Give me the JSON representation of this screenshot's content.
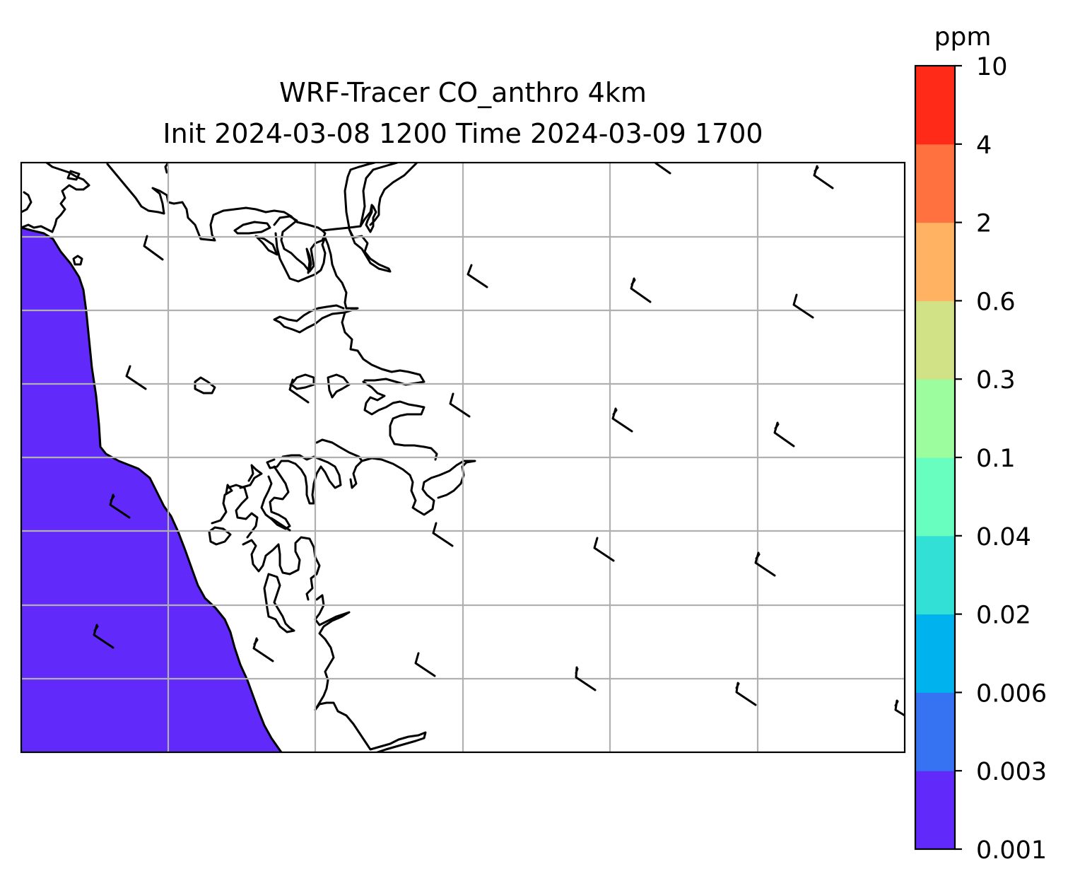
{
  "title": {
    "line1": "WRF-Tracer CO_anthro 4km",
    "line2": "Init 2024-03-08 1200 Time 2024-03-09 1700"
  },
  "colorbar": {
    "unit": "ppm",
    "levels": [
      "0.001",
      "0.003",
      "0.006",
      "0.02",
      "0.04",
      "0.1",
      "0.3",
      "0.6",
      "2",
      "4",
      "10"
    ],
    "colors": [
      "#6229fb",
      "#3573f3",
      "#00b2ed",
      "#32e0d6",
      "#67fec0",
      "#9bfd9d",
      "#d0e285",
      "#ffb262",
      "#ff7240",
      "#ff2b18"
    ]
  },
  "map": {
    "shaded_color": "#6229fb",
    "coastline_color": "#000000",
    "grid_color": "#b0b0b0",
    "barb_color": "#000000"
  }
}
